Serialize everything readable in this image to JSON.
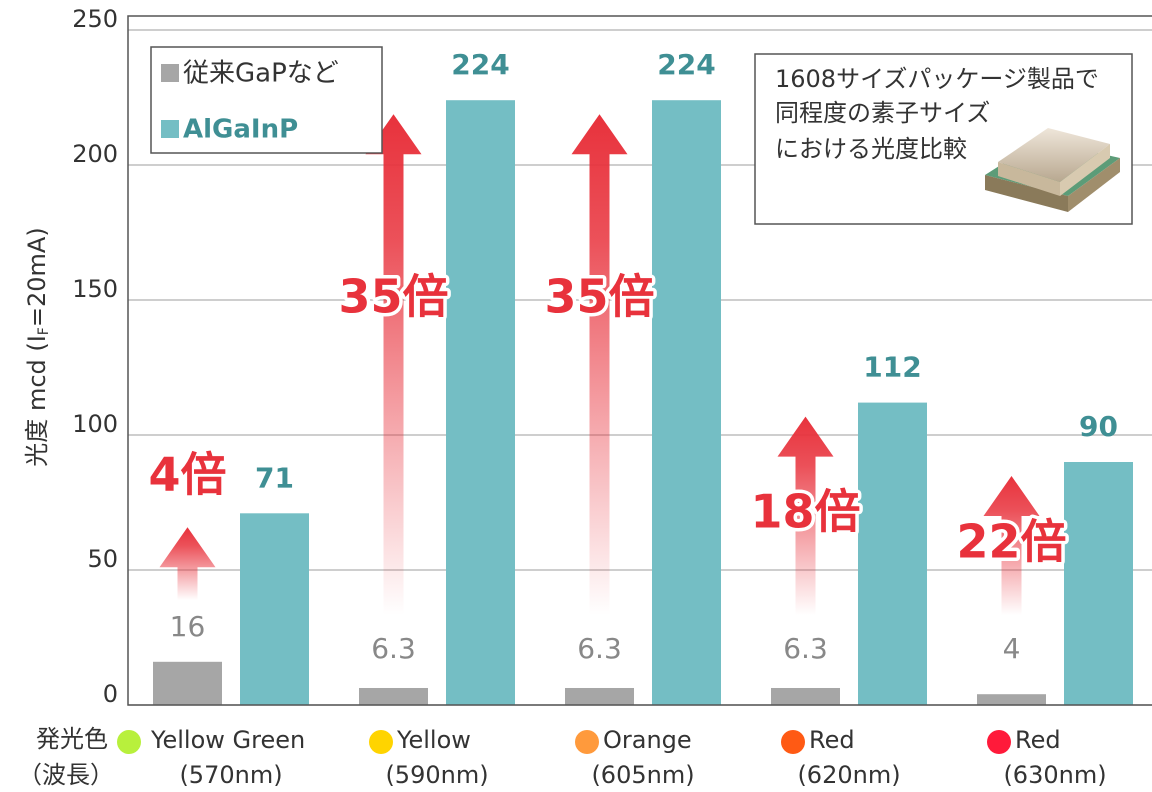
{
  "chart_data": {
    "type": "bar",
    "y_label": [
      "光度 mcd (I",
      "F",
      "=20mA)"
    ],
    "row_labels": [
      "発光色",
      "（波長）"
    ],
    "categories": [
      "Yellow Green",
      "Yellow",
      "Orange",
      "Red",
      "Red"
    ],
    "wavelengths": [
      "(570nm)",
      "(590nm)",
      "(605nm)",
      "(620nm)",
      "(630nm)"
    ],
    "category_colors": [
      "#b8f03c",
      "#ffd400",
      "#ff9a3c",
      "#ff5a14",
      "#ff1a3a"
    ],
    "series": [
      {
        "name": "従来GaPなど",
        "color": "#a6a6a6",
        "values": [
          16,
          6.3,
          6.3,
          6.3,
          4
        ]
      },
      {
        "name": "AlGaInP",
        "color": "#74bec4",
        "values": [
          71,
          224,
          224,
          112,
          90
        ]
      }
    ],
    "annotations": [
      "4倍",
      "35倍",
      "35倍",
      "18倍",
      "22倍"
    ],
    "inset_text": [
      "1608サイズパッケージ製品で",
      "同程度の素子サイズ",
      "における光度比較"
    ],
    "ylim": [
      0,
      250
    ],
    "yticks": [
      0,
      50,
      100,
      150,
      200,
      250
    ],
    "grid": true
  }
}
